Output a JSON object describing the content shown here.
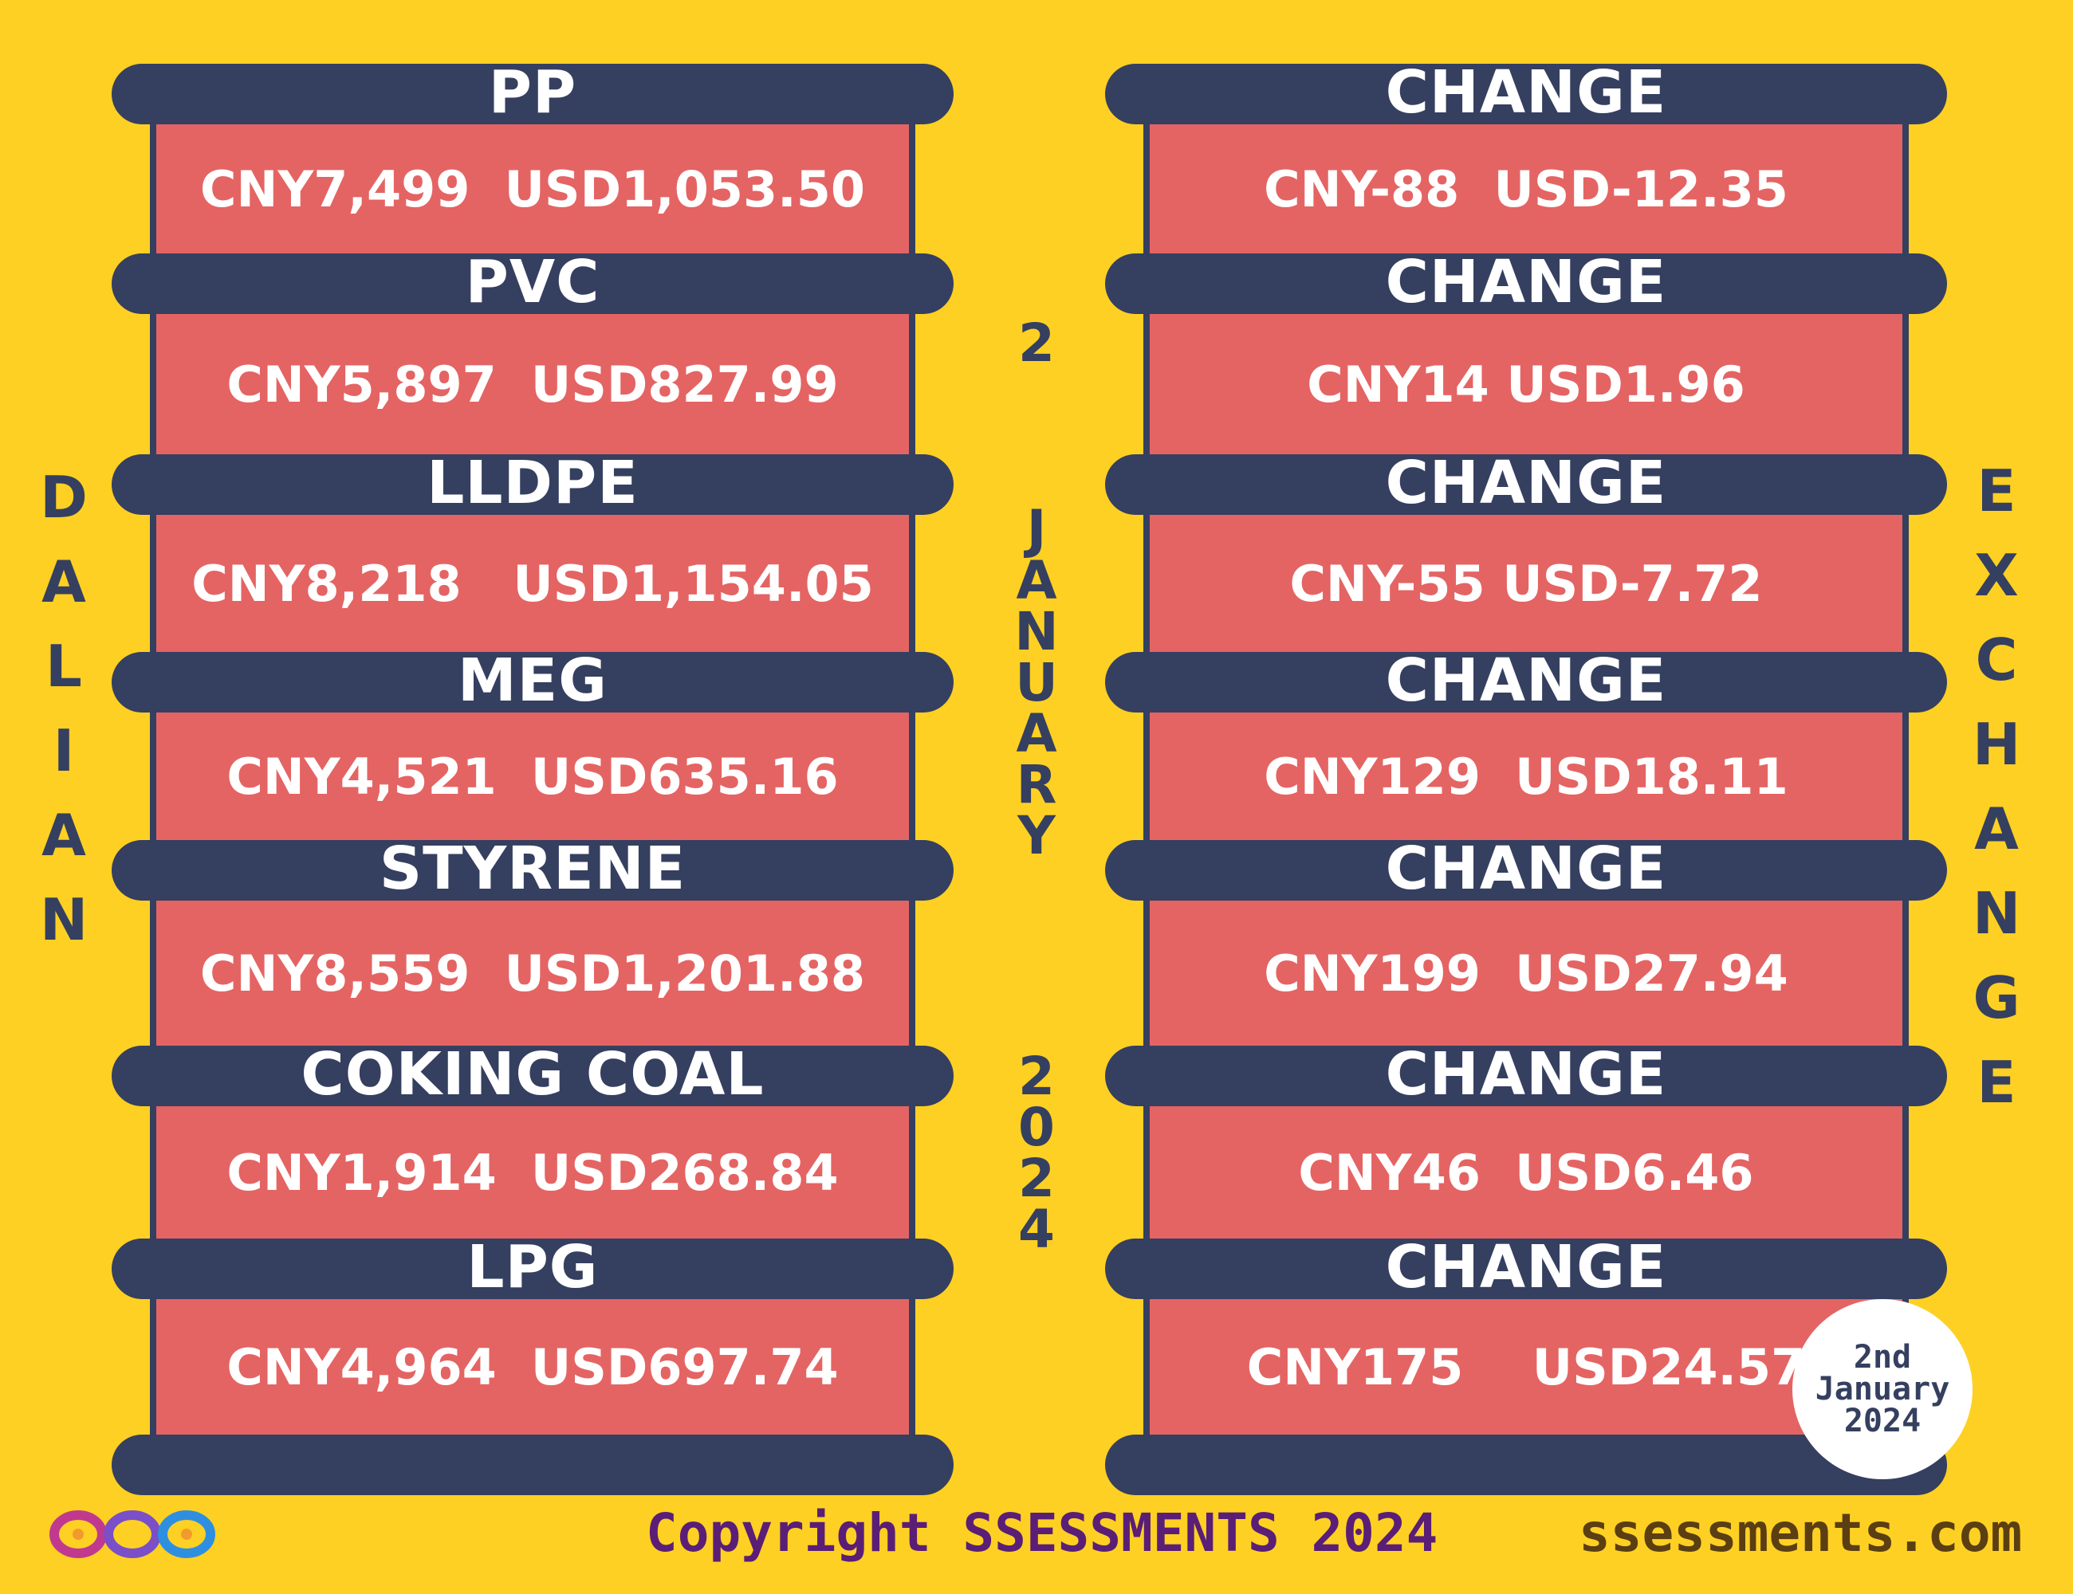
{
  "commodities": [
    {
      "name": "PP",
      "price": "CNY7,499  USD1,053.50",
      "change_label": "CHANGE",
      "change": "CNY-88  USD-12.35"
    },
    {
      "name": "PVC",
      "price": "CNY5,897  USD827.99",
      "change_label": "CHANGE",
      "change": "CNY14 USD1.96"
    },
    {
      "name": "LLDPE",
      "price": "CNY8,218   USD1,154.05",
      "change_label": "CHANGE",
      "change": "CNY-55 USD-7.72"
    },
    {
      "name": "MEG",
      "price": "CNY4,521  USD635.16",
      "change_label": "CHANGE",
      "change": "CNY129  USD18.11"
    },
    {
      "name": "STYRENE",
      "price": "CNY8,559  USD1,201.88",
      "change_label": "CHANGE",
      "change": "CNY199  USD27.94"
    },
    {
      "name": "COKING COAL",
      "price": "CNY1,914  USD268.84",
      "change_label": "CHANGE",
      "change": "CNY46  USD6.46"
    },
    {
      "name": "LPG",
      "price": "CNY4,964  USD697.74",
      "change_label": "CHANGE",
      "change": "CNY175    USD24.57"
    }
  ],
  "side_left": "DALIAN",
  "side_right": "EXCHANGE",
  "center_date": {
    "day": "2",
    "month": "JANUARY",
    "year": "2024"
  },
  "stamp": {
    "line1": "2nd",
    "line2": "January",
    "line3": "2024"
  },
  "footer": {
    "copyright": "Copyright SSESSMENTS 2024",
    "website": "ssessments.com",
    "logo_icon": "infinity-loops-logo-icon"
  },
  "colors": {
    "background": "#FDD023",
    "bar": "#353F60",
    "box": "#E46463",
    "text_dark": "#353F60",
    "copyright": "#5A1E77",
    "website": "#5B3E12"
  }
}
